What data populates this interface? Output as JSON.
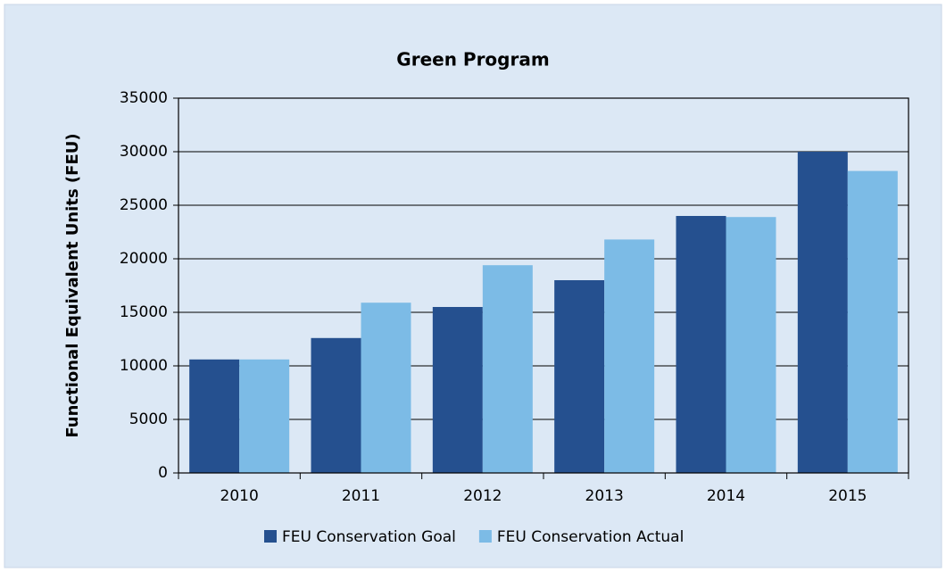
{
  "chart_data": {
    "type": "bar",
    "title": "Green Program",
    "ylabel": "Functional Equivalent Units (FEU)",
    "categories": [
      "2010",
      "2011",
      "2012",
      "2013",
      "2014",
      "2015"
    ],
    "series": [
      {
        "name": "FEU Conservation Goal",
        "color": "#25508f",
        "values": [
          10600,
          12600,
          15500,
          18000,
          24000,
          30000
        ]
      },
      {
        "name": "FEU Conservation Actual",
        "color": "#7cbbe6",
        "values": [
          10600,
          15900,
          19400,
          21800,
          23900,
          28200
        ]
      }
    ],
    "ylim": [
      0,
      35000
    ],
    "yticks": [
      0,
      5000,
      10000,
      15000,
      20000,
      25000,
      30000,
      35000
    ],
    "grid": true,
    "legend": "bottom"
  }
}
